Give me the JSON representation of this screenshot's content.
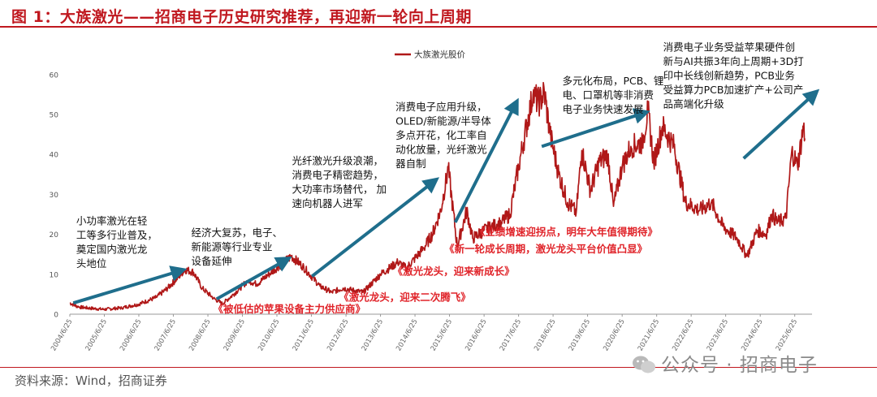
{
  "title": "图 1：大族激光——招商电子历史研究推荐，再迎新一轮向上周期",
  "source": "资料来源：Wind，招商证券",
  "watermark": "公众号 · 招商电子",
  "colors": {
    "line": "#b01818",
    "arrow": "#1f6e8c",
    "callout": "#e0242a",
    "axis": "#999999"
  },
  "chart_data": {
    "type": "line",
    "series": [
      {
        "name": "大族激光股价",
        "points": [
          [
            "2004/6/25",
            2.8
          ],
          [
            "2004/9/25",
            1.8
          ],
          [
            "2005/1/25",
            1.5
          ],
          [
            "2005/6/25",
            1.2
          ],
          [
            "2005/12/25",
            1.6
          ],
          [
            "2006/6/25",
            2.5
          ],
          [
            "2006/12/25",
            4.2
          ],
          [
            "2007/4/25",
            6.5
          ],
          [
            "2007/8/25",
            9.5
          ],
          [
            "2007/10/25",
            11.2
          ],
          [
            "2008/1/25",
            10.5
          ],
          [
            "2008/4/25",
            6.5
          ],
          [
            "2008/8/25",
            4.0
          ],
          [
            "2008/11/25",
            2.6
          ],
          [
            "2009/3/25",
            5.0
          ],
          [
            "2009/8/25",
            8.5
          ],
          [
            "2009/11/25",
            7.5
          ],
          [
            "2010/4/25",
            10.5
          ],
          [
            "2010/8/25",
            12.8
          ],
          [
            "2010/11/25",
            14.5
          ],
          [
            "2011/3/25",
            12.0
          ],
          [
            "2011/9/25",
            7.0
          ],
          [
            "2012/1/25",
            5.5
          ],
          [
            "2012/5/25",
            6.5
          ],
          [
            "2012/12/25",
            5.5
          ],
          [
            "2013/6/25",
            10.0
          ],
          [
            "2013/12/25",
            13.0
          ],
          [
            "2014/3/25",
            11.5
          ],
          [
            "2014/9/25",
            16.5
          ],
          [
            "2014/12/25",
            20.0
          ],
          [
            "2015/3/25",
            26.0
          ],
          [
            "2015/6/12",
            36.5
          ],
          [
            "2015/9/15",
            17.0
          ],
          [
            "2015/12/25",
            26.0
          ],
          [
            "2016/2/25",
            19.0
          ],
          [
            "2016/6/25",
            21.0
          ],
          [
            "2016/12/25",
            23.0
          ],
          [
            "2017/3/25",
            25.0
          ],
          [
            "2017/6/25",
            37.0
          ],
          [
            "2017/9/25",
            48.0
          ],
          [
            "2017/11/25",
            55.0
          ],
          [
            "2018/1/25",
            53.0
          ],
          [
            "2018/3/25",
            55.5
          ],
          [
            "2018/5/25",
            45.0
          ],
          [
            "2018/8/25",
            35.0
          ],
          [
            "2018/11/25",
            28.0
          ],
          [
            "2019/2/25",
            25.5
          ],
          [
            "2019/4/25",
            41.0
          ],
          [
            "2019/7/25",
            31.0
          ],
          [
            "2019/10/25",
            38.0
          ],
          [
            "2020/1/25",
            40.0
          ],
          [
            "2020/3/25",
            27.0
          ],
          [
            "2020/6/25",
            37.0
          ],
          [
            "2020/9/25",
            42.0
          ],
          [
            "2021/1/25",
            43.0
          ],
          [
            "2021/3/25",
            51.0
          ],
          [
            "2021/5/25",
            38.0
          ],
          [
            "2021/8/25",
            47.0
          ],
          [
            "2021/12/25",
            42.0
          ],
          [
            "2022/4/25",
            28.0
          ],
          [
            "2022/9/25",
            26.0
          ],
          [
            "2023/1/25",
            28.0
          ],
          [
            "2023/5/25",
            22.0
          ],
          [
            "2023/10/25",
            19.0
          ],
          [
            "2024/2/6",
            14.5
          ],
          [
            "2024/5/25",
            21.0
          ],
          [
            "2024/8/25",
            20.0
          ],
          [
            "2024/10/25",
            25.0
          ],
          [
            "2024/12/25",
            23.0
          ],
          [
            "2025/3/25",
            24.0
          ],
          [
            "2025/5/25",
            41.0
          ],
          [
            "2025/7/25",
            37.0
          ],
          [
            "2025/9/25",
            47.0
          ],
          [
            "2025/10/10",
            44.0
          ]
        ]
      }
    ],
    "x_ticks": [
      "2004/6/25",
      "2005/6/25",
      "2006/6/25",
      "2007/6/25",
      "2008/6/25",
      "2009/6/25",
      "2010/6/25",
      "2011/6/25",
      "2012/6/25",
      "2013/6/25",
      "2014/6/25",
      "2015/6/25",
      "2016/6/25",
      "2017/6/25",
      "2018/6/25",
      "2019/6/25",
      "2020/6/25",
      "2021/6/25",
      "2022/6/25",
      "2023/6/25",
      "2024/6/25",
      "2025/6/25"
    ],
    "y_ticks": [
      0,
      10,
      20,
      30,
      40,
      50,
      60
    ],
    "xlim": [
      "2004/6/25",
      "2025/12/25"
    ],
    "ylim": [
      0,
      62
    ],
    "legend": "top-left",
    "grid": false,
    "text_blocks": [
      {
        "lines": [
          "小功率激光在轻",
          "工等多行业普及，",
          "奠定国内激光龙",
          "头地位"
        ],
        "at": [
          "2004/9/1",
          22.5
        ]
      },
      {
        "lines": [
          "经济大复苏，电子、",
          "新能源等行业专业",
          "设备延伸"
        ],
        "at": [
          "2008/1/1",
          19.5
        ]
      },
      {
        "lines": [
          "光纤激光升级浪潮，",
          "消费电子精密趋势，",
          "大功率市场替代，  加",
          "速向机器人进军"
        ],
        "at": [
          "2010/12/1",
          37.5
        ]
      },
      {
        "lines": [
          "消费电子应用升级，",
          "OLED/新能源/半导体",
          "多点开花，化工率自",
          "动化放量，光纤激光",
          "器自制"
        ],
        "at": [
          "2013/12/1",
          51.0
        ]
      },
      {
        "lines": [
          "多元化布局，PCB、锂",
          "电、口罩机等非消费",
          "电子业务快速发展"
        ],
        "at": [
          "2018/10/1",
          57.5
        ]
      },
      {
        "lines": [
          "消费电子业务受益苹果硬件创",
          "新与AI共振3年向上周期+3D打",
          "印中长线创新趋势，PCB业务",
          "受益算力PCB加速扩产+公司产",
          "品高端化升级"
        ],
        "at": [
          "2021/9/1",
          66.0
        ]
      }
    ],
    "callouts": [
      {
        "text": "《被低估的苹果设备主力供应商》",
        "at": [
          "2008/8/20",
          0.4
        ]
      },
      {
        "text": "《激光龙头，迎来二次腾飞》",
        "at": [
          "2012/4/10",
          3.4
        ]
      },
      {
        "text": "《激光龙头，迎来新成长》",
        "at": [
          "2013/11/1",
          9.9
        ]
      },
      {
        "text": "《新一轮成长周期，激光龙头平台价值凸显》",
        "at": [
          "2015/5/1",
          15.5
        ]
      },
      {
        "text": "《业绩增速迎拐点，明年大年值得期待》",
        "at": [
          "2016/3/20",
          19.7
        ]
      }
    ],
    "arrows": [
      {
        "from": [
          "2004/8/1",
          2.8
        ],
        "to": [
          "2007/9/25",
          11.0
        ]
      },
      {
        "from": [
          "2008/9/25",
          3.8
        ],
        "to": [
          "2010/10/15",
          13.8
        ]
      },
      {
        "from": [
          "2011/7/1",
          9.5
        ],
        "to": [
          "2015/1/25",
          33.5
        ]
      },
      {
        "from": [
          "2015/8/25",
          23.0
        ],
        "to": [
          "2017/6/1",
          53.0
        ]
      },
      {
        "from": [
          "2018/2/25",
          42.0
        ],
        "to": [
          "2021/2/25",
          50.5
        ]
      },
      {
        "from": [
          "2024/1/1",
          39.0
        ],
        "to": [
          "2026/2/1",
          55.5
        ]
      }
    ]
  }
}
